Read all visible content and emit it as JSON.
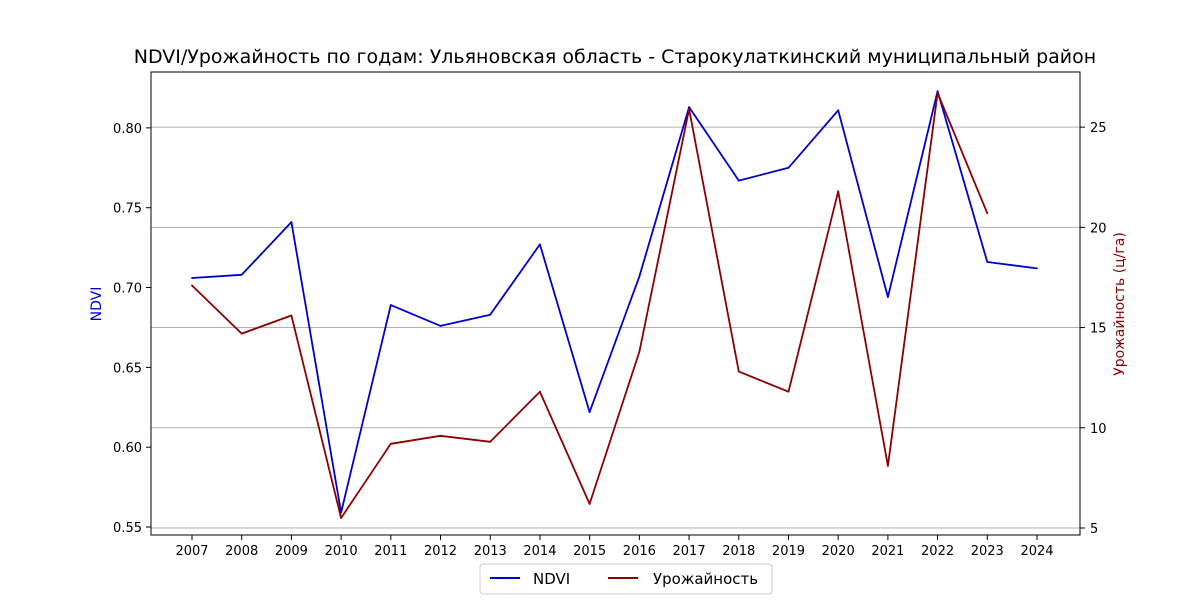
{
  "chart_data": {
    "type": "line",
    "title": "NDVI/Урожайность по годам: Ульяновская область - Старокулаткинский муниципальный район",
    "x": [
      2007,
      2008,
      2009,
      2010,
      2011,
      2012,
      2013,
      2014,
      2015,
      2016,
      2017,
      2018,
      2019,
      2020,
      2021,
      2022,
      2023,
      2024
    ],
    "x_tick_labels": [
      "2007",
      "2008",
      "2009",
      "2010",
      "2011",
      "2012",
      "2013",
      "2014",
      "2015",
      "2016",
      "2017",
      "2018",
      "2019",
      "2020",
      "2021",
      "2022",
      "2023",
      "2024"
    ],
    "left_axis": {
      "label": "NDVI",
      "color": "#0000cc",
      "ylim": [
        0.545,
        0.835
      ],
      "ticks": [
        0.55,
        0.6,
        0.65,
        0.7,
        0.75,
        0.8
      ],
      "tick_labels": [
        "0.55",
        "0.60",
        "0.65",
        "0.70",
        "0.75",
        "0.80"
      ]
    },
    "right_axis": {
      "label": "Урожайность (ц/га)",
      "color": "#8b0000",
      "ylim": [
        4.65,
        27.75
      ],
      "ticks": [
        5,
        10,
        15,
        20,
        25
      ],
      "tick_labels": [
        "5",
        "10",
        "15",
        "20",
        "25"
      ],
      "grid": true
    },
    "series": [
      {
        "name": "NDVI",
        "axis": "left",
        "color": "#0000cc",
        "values": [
          0.706,
          0.708,
          0.741,
          0.559,
          0.689,
          0.676,
          0.683,
          0.727,
          0.622,
          0.707,
          0.813,
          0.767,
          0.775,
          0.811,
          0.694,
          0.823,
          0.716,
          0.712
        ]
      },
      {
        "name": "Урожайность",
        "axis": "right",
        "color": "#8b0000",
        "values": [
          17.1,
          14.7,
          15.6,
          5.5,
          9.2,
          9.6,
          9.3,
          11.8,
          6.2,
          13.8,
          25.9,
          12.8,
          11.8,
          21.8,
          8.1,
          26.7,
          20.7,
          null
        ]
      }
    ],
    "legend": {
      "placement": "bottom-center",
      "entries": [
        "NDVI",
        "Урожайность"
      ]
    }
  }
}
